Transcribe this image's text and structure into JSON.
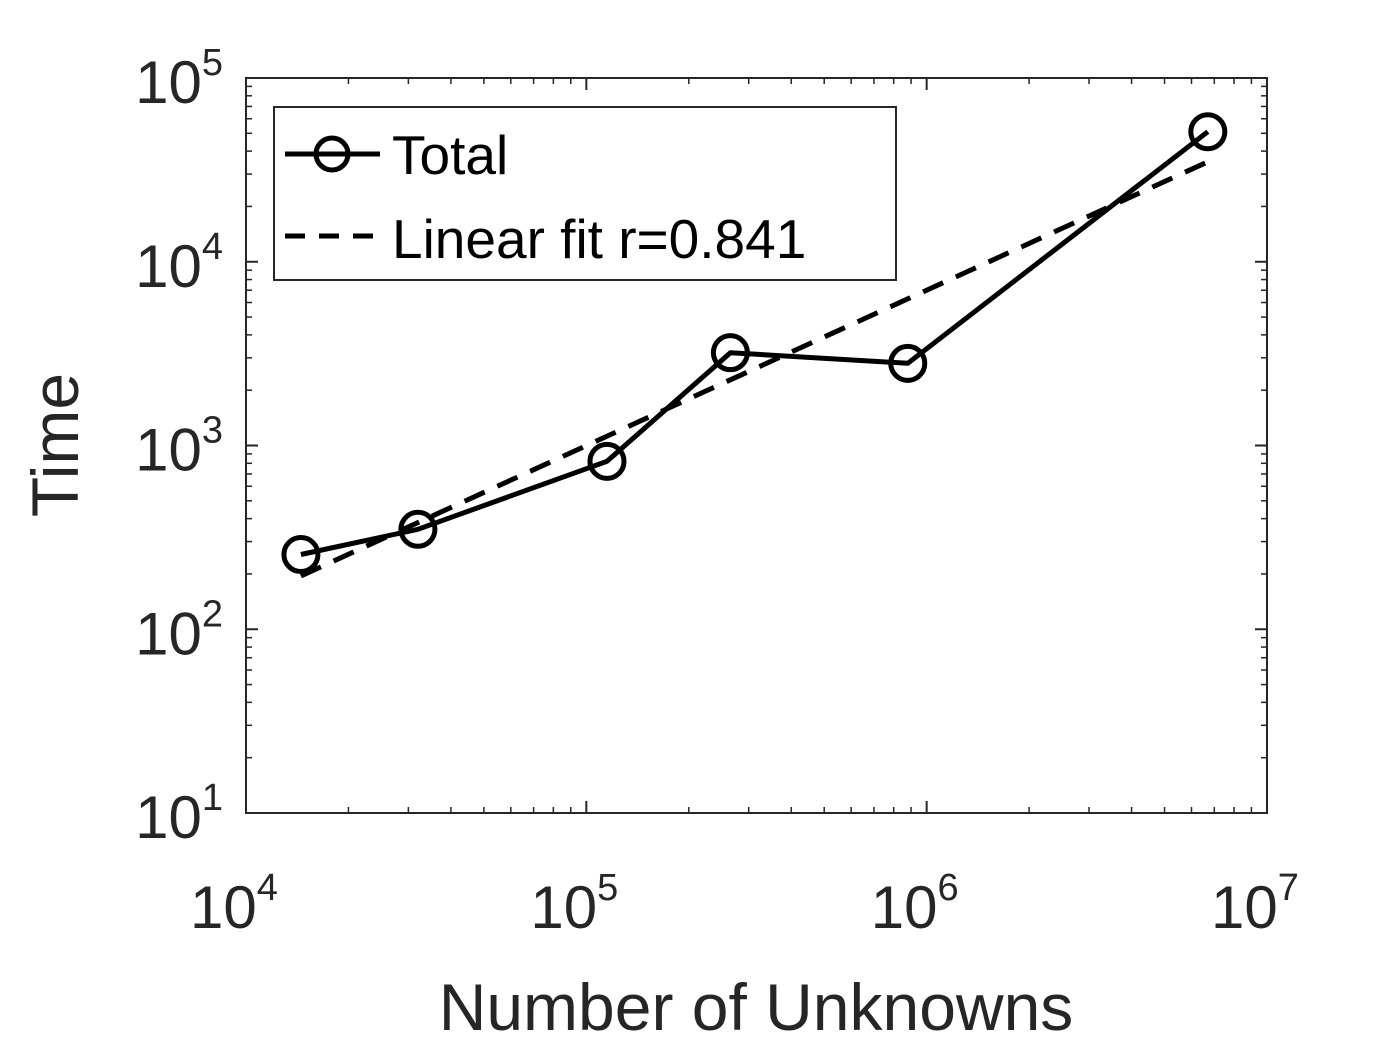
{
  "chart_data": {
    "type": "line",
    "title": "",
    "xlabel": "Number of Unknowns",
    "ylabel": "Time",
    "xscale": "log",
    "yscale": "log",
    "xlim": [
      10000,
      10000000
    ],
    "ylim": [
      10,
      100000
    ],
    "grid": false,
    "legend_position": "top-left",
    "x_ticks": [
      {
        "base": "10",
        "exp": "4",
        "value": 10000
      },
      {
        "base": "10",
        "exp": "5",
        "value": 100000
      },
      {
        "base": "10",
        "exp": "6",
        "value": 1000000
      },
      {
        "base": "10",
        "exp": "7",
        "value": 10000000
      }
    ],
    "y_ticks": [
      {
        "base": "10",
        "exp": "1",
        "value": 10
      },
      {
        "base": "10",
        "exp": "2",
        "value": 100
      },
      {
        "base": "10",
        "exp": "3",
        "value": 1000
      },
      {
        "base": "10",
        "exp": "4",
        "value": 10000
      },
      {
        "base": "10",
        "exp": "5",
        "value": 100000
      }
    ],
    "series": [
      {
        "name": "Total",
        "style": "solid-circle-markers",
        "color": "#000000",
        "x": [
          14500,
          32000,
          115000,
          265000,
          880000,
          6700000
        ],
        "y": [
          255,
          350,
          820,
          3200,
          2800,
          51000
        ]
      },
      {
        "name": "Linear fit r=0.841",
        "style": "dashed",
        "color": "#000000",
        "x": [
          14500,
          6700000
        ],
        "y": [
          195,
          35000
        ]
      }
    ]
  }
}
